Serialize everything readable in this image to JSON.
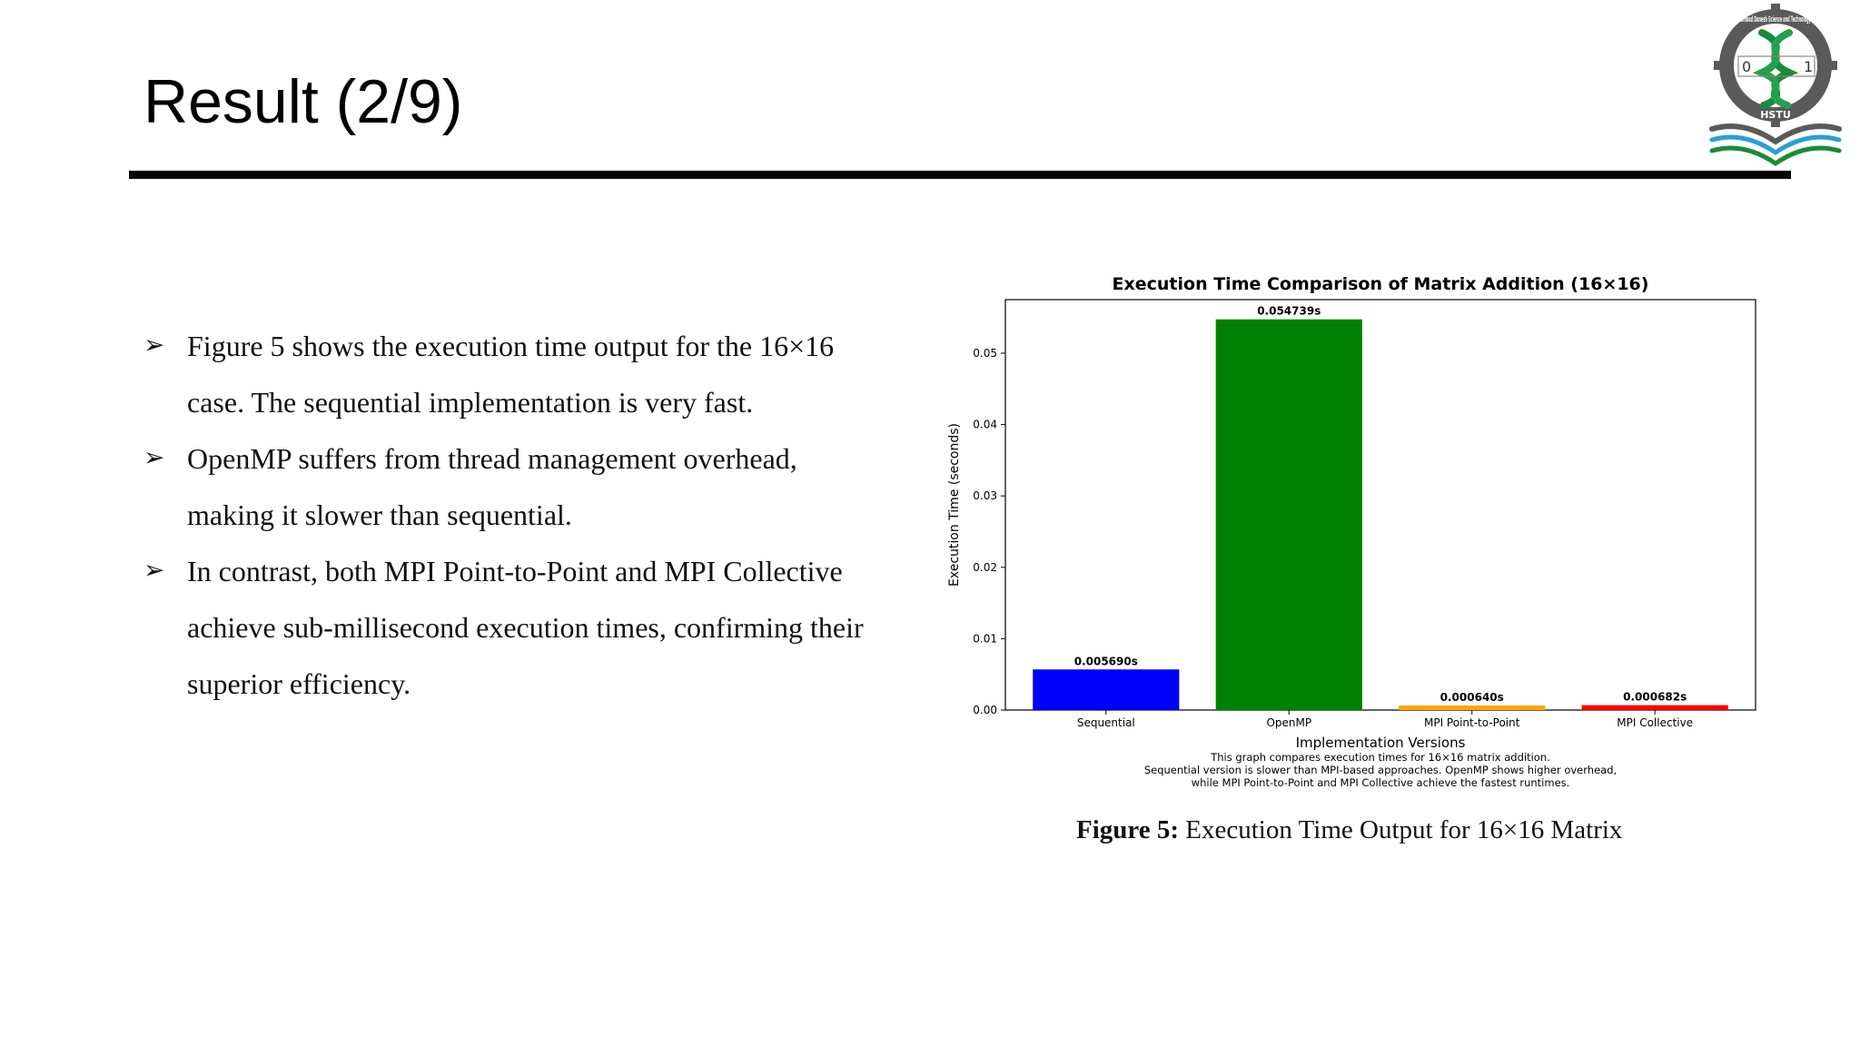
{
  "slide": {
    "title": "Result (2/9)"
  },
  "logo": {
    "ring_text": "Hajee Mohammad Danesh Science and Technology University",
    "abbr": "HSTU",
    "left_digit": "0",
    "right_digit": "1",
    "colors": {
      "ring": "#555555",
      "helix": "#1a8a3c",
      "book_blue": "#2a9fd8",
      "book_green": "#1a8a3c"
    }
  },
  "bullets": [
    {
      "icon": "arrow-bullet-icon",
      "lines": [
        "Figure 5 shows the execution time output for the 16×16",
        "case. The sequential implementation is very fast."
      ]
    },
    {
      "icon": "arrow-bullet-icon",
      "lines": [
        "OpenMP suffers from thread management overhead,",
        "making it slower than sequential."
      ]
    },
    {
      "icon": "arrow-bullet-icon",
      "lines": [
        "In contrast, both MPI Point-to-Point and MPI Collective",
        "achieve sub-millisecond execution times, confirming their",
        "superior efficiency."
      ]
    }
  ],
  "figure": {
    "caption_label": "Figure 5:",
    "caption_text": " Execution Time Output for 16×16 Matrix"
  },
  "chart_data": {
    "type": "bar",
    "title": "Execution Time Comparison of Matrix Addition (16×16)",
    "xlabel": "Implementation Versions",
    "ylabel": "Execution Time (seconds)",
    "categories": [
      "Sequential",
      "OpenMP",
      "MPI Point-to-Point",
      "MPI Collective"
    ],
    "values": [
      0.00569,
      0.054739,
      0.00064,
      0.000682
    ],
    "data_labels": [
      "0.005690s",
      "0.054739s",
      "0.000640s",
      "0.000682s"
    ],
    "colors": [
      "#0000ff",
      "#008000",
      "#ffa500",
      "#ff0000"
    ],
    "ylim": [
      0,
      0.0575
    ],
    "yticks": [
      0.0,
      0.01,
      0.02,
      0.03,
      0.04,
      0.05
    ],
    "ytick_labels": [
      "0.00",
      "0.01",
      "0.02",
      "0.03",
      "0.04",
      "0.05"
    ],
    "grid": false,
    "note": [
      "This graph compares execution times for 16×16 matrix addition.",
      "Sequential version is slower than MPI-based approaches. OpenMP shows higher overhead,",
      "while MPI Point-to-Point and MPI Collective achieve the fastest runtimes."
    ]
  }
}
